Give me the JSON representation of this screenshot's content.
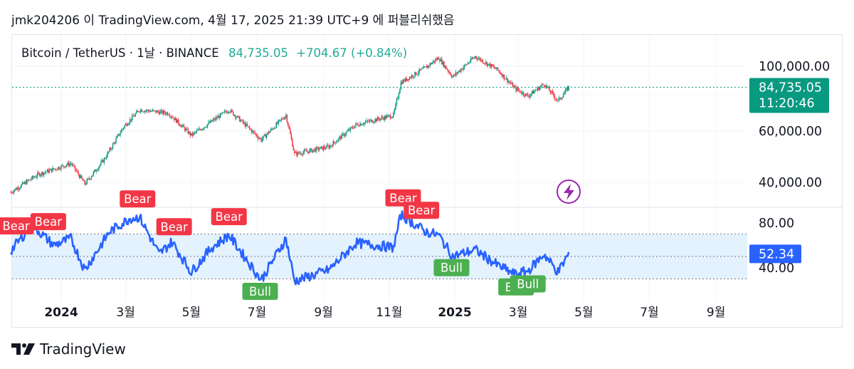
{
  "caption": "jmk204206 이 TradingView.com, 4월 17, 2025 21:39 UTC+9 에 퍼블리쉬했음",
  "legend": {
    "symbol": "Bitcoin / TetherUS · 1날 · BINANCE",
    "price": "84,735.05",
    "change": "+704.67 (+0.84%)"
  },
  "price_tag": {
    "price": "84,735.05",
    "countdown": "11:20:46",
    "color": "#089981"
  },
  "osc_tag": {
    "value": "52.34",
    "color": "#2962ff"
  },
  "footer": {
    "brand": "TradingView",
    "logo_icon": "tradingview-logo-icon"
  },
  "lightning_icon": "lightning-bolt-icon",
  "colors": {
    "up": "#089981",
    "down": "#f23645",
    "line": "#2962ff",
    "band": "#e3f2fd",
    "bull": "#4caf50",
    "bear": "#f23645"
  },
  "chart_data": [
    {
      "type": "candlestick",
      "title": "Bitcoin / TetherUS · 1날 · BINANCE",
      "x_ticks": [
        "2024",
        "3월",
        "5월",
        "7월",
        "9월",
        "11월",
        "2025",
        "3월",
        "5월",
        "7월",
        "9월"
      ],
      "y_ticks": [
        "100,000.00",
        "60,000.00",
        "40,000.00"
      ],
      "y_scale": "log",
      "ylim": [
        35000,
        118000
      ],
      "last_price": 84735.05,
      "series_approx": [
        {
          "date": "2023-11-15",
          "close": 37000
        },
        {
          "date": "2023-12-10",
          "close": 42500
        },
        {
          "date": "2024-01-10",
          "close": 46500
        },
        {
          "date": "2024-01-23",
          "close": 39500
        },
        {
          "date": "2024-02-10",
          "close": 48000
        },
        {
          "date": "2024-02-28",
          "close": 62000
        },
        {
          "date": "2024-03-14",
          "close": 71000
        },
        {
          "date": "2024-04-10",
          "close": 69000
        },
        {
          "date": "2024-05-01",
          "close": 58000
        },
        {
          "date": "2024-06-05",
          "close": 71000
        },
        {
          "date": "2024-07-05",
          "close": 56000
        },
        {
          "date": "2024-07-28",
          "close": 68000
        },
        {
          "date": "2024-08-05",
          "close": 50000
        },
        {
          "date": "2024-09-06",
          "close": 53000
        },
        {
          "date": "2024-10-01",
          "close": 63000
        },
        {
          "date": "2024-11-05",
          "close": 68000
        },
        {
          "date": "2024-11-12",
          "close": 88000
        },
        {
          "date": "2024-12-05",
          "close": 99000
        },
        {
          "date": "2024-12-17",
          "close": 107000
        },
        {
          "date": "2024-12-30",
          "close": 92000
        },
        {
          "date": "2025-01-20",
          "close": 108000
        },
        {
          "date": "2025-02-10",
          "close": 97000
        },
        {
          "date": "2025-02-26",
          "close": 84000
        },
        {
          "date": "2025-03-10",
          "close": 79000
        },
        {
          "date": "2025-03-25",
          "close": 87000
        },
        {
          "date": "2025-04-07",
          "close": 76000
        },
        {
          "date": "2025-04-17",
          "close": 84735
        }
      ]
    },
    {
      "type": "line",
      "title": "",
      "y_ticks": [
        "80.00",
        "40.00"
      ],
      "band": [
        30,
        70
      ],
      "midline": 50,
      "last_value": 52.34,
      "series_approx": [
        {
          "date": "2023-11-15",
          "value": 55
        },
        {
          "date": "2023-12-05",
          "value": 78
        },
        {
          "date": "2023-12-25",
          "value": 60
        },
        {
          "date": "2024-01-10",
          "value": 66
        },
        {
          "date": "2024-01-23",
          "value": 38
        },
        {
          "date": "2024-02-15",
          "value": 72
        },
        {
          "date": "2024-03-05",
          "value": 84
        },
        {
          "date": "2024-03-14",
          "value": 85
        },
        {
          "date": "2024-04-01",
          "value": 52
        },
        {
          "date": "2024-04-13",
          "value": 63
        },
        {
          "date": "2024-05-01",
          "value": 36
        },
        {
          "date": "2024-05-20",
          "value": 58
        },
        {
          "date": "2024-06-05",
          "value": 69
        },
        {
          "date": "2024-07-05",
          "value": 29
        },
        {
          "date": "2024-07-28",
          "value": 66
        },
        {
          "date": "2024-08-05",
          "value": 28
        },
        {
          "date": "2024-09-06",
          "value": 38
        },
        {
          "date": "2024-10-01",
          "value": 62
        },
        {
          "date": "2024-11-05",
          "value": 58
        },
        {
          "date": "2024-11-12",
          "value": 87
        },
        {
          "date": "2024-12-05",
          "value": 72
        },
        {
          "date": "2024-12-17",
          "value": 69
        },
        {
          "date": "2024-12-30",
          "value": 50
        },
        {
          "date": "2025-01-20",
          "value": 56
        },
        {
          "date": "2025-02-10",
          "value": 42
        },
        {
          "date": "2025-02-26",
          "value": 34
        },
        {
          "date": "2025-03-10",
          "value": 37
        },
        {
          "date": "2025-03-25",
          "value": 52
        },
        {
          "date": "2025-04-07",
          "value": 36
        },
        {
          "date": "2025-04-17",
          "value": 52.34
        }
      ],
      "labels": [
        {
          "text": "Bear",
          "kind": "bear",
          "date": "2023-11-20"
        },
        {
          "text": "Bear",
          "kind": "bear",
          "date": "2023-12-20"
        },
        {
          "text": "Bear",
          "kind": "bear",
          "date": "2024-03-12"
        },
        {
          "text": "Bear",
          "kind": "bear",
          "date": "2024-04-15"
        },
        {
          "text": "Bear",
          "kind": "bear",
          "date": "2024-06-05"
        },
        {
          "text": "Bull",
          "kind": "bull",
          "date": "2024-07-04"
        },
        {
          "text": "Bear",
          "kind": "bear",
          "date": "2024-11-14"
        },
        {
          "text": "Bear",
          "kind": "bear",
          "date": "2024-12-01"
        },
        {
          "text": "Bull",
          "kind": "bull",
          "date": "2024-12-29"
        },
        {
          "text": "Bull",
          "kind": "bull",
          "date": "2025-02-27"
        },
        {
          "text": "Bull",
          "kind": "bull",
          "date": "2025-03-10"
        }
      ]
    }
  ]
}
